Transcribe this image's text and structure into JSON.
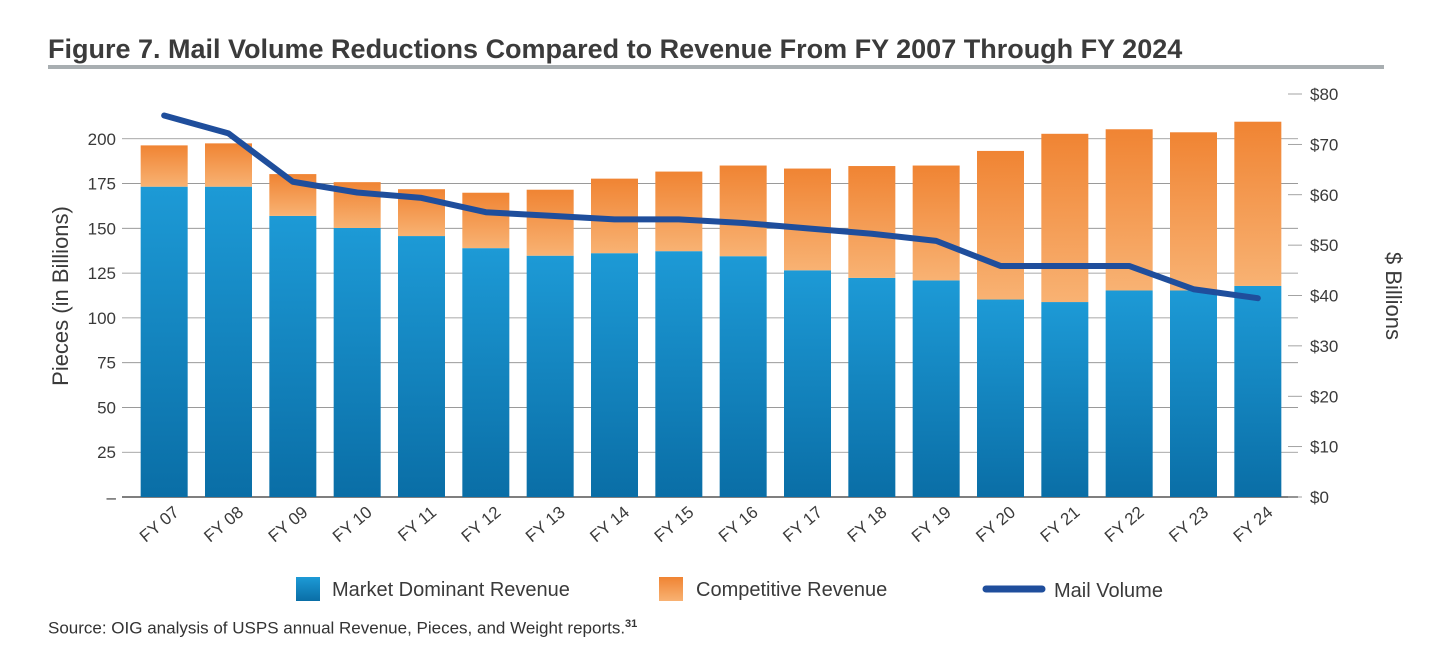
{
  "title": "Figure 7. Mail Volume Reductions Compared to Revenue From FY 2007 Through FY 2024",
  "source": {
    "text": "Source: OIG analysis of USPS annual Revenue, Pieces, and Weight reports.",
    "footnote": "31"
  },
  "colors": {
    "market_dominant": "#1a94d1",
    "market_dominant_dark": "#0a6fa6",
    "competitive": "#f0883a",
    "competitive_light": "#f7b072",
    "mail_volume": "#1f4e9c",
    "grid": "#8c8c8c",
    "title_rule": "#a8aeb1"
  },
  "chart_data": {
    "type": "bar",
    "stacked": true,
    "categories": [
      "FY 07",
      "FY 08",
      "FY 09",
      "FY 10",
      "FY 11",
      "FY 12",
      "FY 13",
      "FY 14",
      "FY 15",
      "FY 16",
      "FY 17",
      "FY 18",
      "FY 19",
      "FY 20",
      "FY 21",
      "FY 22",
      "FY 23",
      "FY 24"
    ],
    "series": [
      {
        "name": "Market Dominant Revenue",
        "axis": "right",
        "kind": "bar",
        "values": [
          61.6,
          61.6,
          55.8,
          53.4,
          51.8,
          49.4,
          47.9,
          48.4,
          48.8,
          47.8,
          45.0,
          43.5,
          43.0,
          39.2,
          38.7,
          41.0,
          41.0,
          41.9
        ]
      },
      {
        "name": "Competitive Revenue",
        "axis": "right",
        "kind": "bar",
        "values": [
          8.2,
          8.6,
          8.3,
          9.1,
          9.3,
          11.0,
          13.1,
          14.8,
          15.8,
          18.0,
          20.2,
          22.2,
          22.8,
          29.5,
          33.4,
          32.0,
          31.4,
          32.6
        ]
      },
      {
        "name": "Mail Volume",
        "axis": "left",
        "kind": "line",
        "values": [
          213,
          203,
          176,
          170,
          167,
          159,
          157,
          155,
          155,
          153,
          150,
          147,
          143,
          129,
          129,
          129,
          116,
          111
        ]
      }
    ],
    "left_axis": {
      "title": "Pieces (in Billions)",
      "ylim": [
        0,
        225
      ],
      "ticks": [
        0,
        25,
        50,
        75,
        100,
        125,
        150,
        175,
        200
      ],
      "tick_labels": [
        "–",
        "25",
        "50",
        "75",
        "100",
        "125",
        "150",
        "175",
        "200"
      ]
    },
    "right_axis": {
      "title": "$ Billions",
      "ylim": [
        0,
        80
      ],
      "ticks": [
        0,
        10,
        20,
        30,
        40,
        50,
        60,
        70,
        80
      ],
      "tick_labels": [
        "$0",
        "$10",
        "$20",
        "$30",
        "$40",
        "$50",
        "$60",
        "$70",
        "$80"
      ]
    },
    "grid": true,
    "legend": {
      "position": "bottom",
      "items": [
        {
          "label": "Market Dominant Revenue",
          "swatch": "bar-blue"
        },
        {
          "label": "Competitive Revenue",
          "swatch": "bar-orange"
        },
        {
          "label": "Mail Volume",
          "swatch": "line"
        }
      ]
    }
  }
}
